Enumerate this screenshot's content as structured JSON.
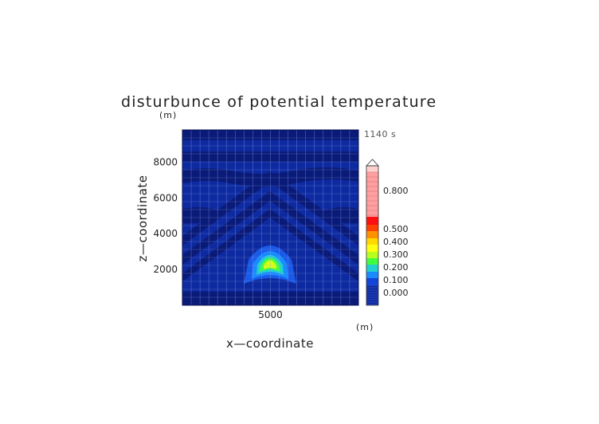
{
  "chart_data": {
    "type": "contour",
    "title": "disturbunce of potential temperature",
    "xlabel": "x—coordinate",
    "ylabel": "z—coordinate",
    "x_unit": "(m)",
    "y_unit": "(m)",
    "time_label": "1140 s",
    "x_range": [
      0,
      10000
    ],
    "y_range": [
      0,
      9800
    ],
    "x_ticks": [
      5000
    ],
    "x_tick_labels": [
      "5000"
    ],
    "y_ticks": [
      2000,
      4000,
      6000,
      8000
    ],
    "y_tick_labels": [
      "2000",
      "4000",
      "6000",
      "8000"
    ],
    "grid": true,
    "colorbar": {
      "levels": [
        -0.1,
        -0.05,
        0.0,
        0.05,
        0.1,
        0.15,
        0.2,
        0.25,
        0.3,
        0.35,
        0.4,
        0.45,
        0.5,
        0.55,
        0.6,
        0.65,
        0.7,
        0.75,
        0.8,
        0.85,
        0.9
      ],
      "tick_labels": [
        "0.000",
        "0.100",
        "0.200",
        "0.300",
        "0.400",
        "0.500",
        "0.800"
      ],
      "colors": [
        "#0a1a6e",
        "#0b2a9a",
        "#1444d8",
        "#1a8aff",
        "#22d0d0",
        "#40ff40",
        "#d8ff10",
        "#ffd800",
        "#ff9000",
        "#ff4000",
        "#ff1010",
        "#ff6a6a",
        "#ff9a9a",
        "#ffc4c4"
      ]
    },
    "peak": {
      "x": 5000,
      "z": 2400,
      "value": 0.25
    }
  }
}
